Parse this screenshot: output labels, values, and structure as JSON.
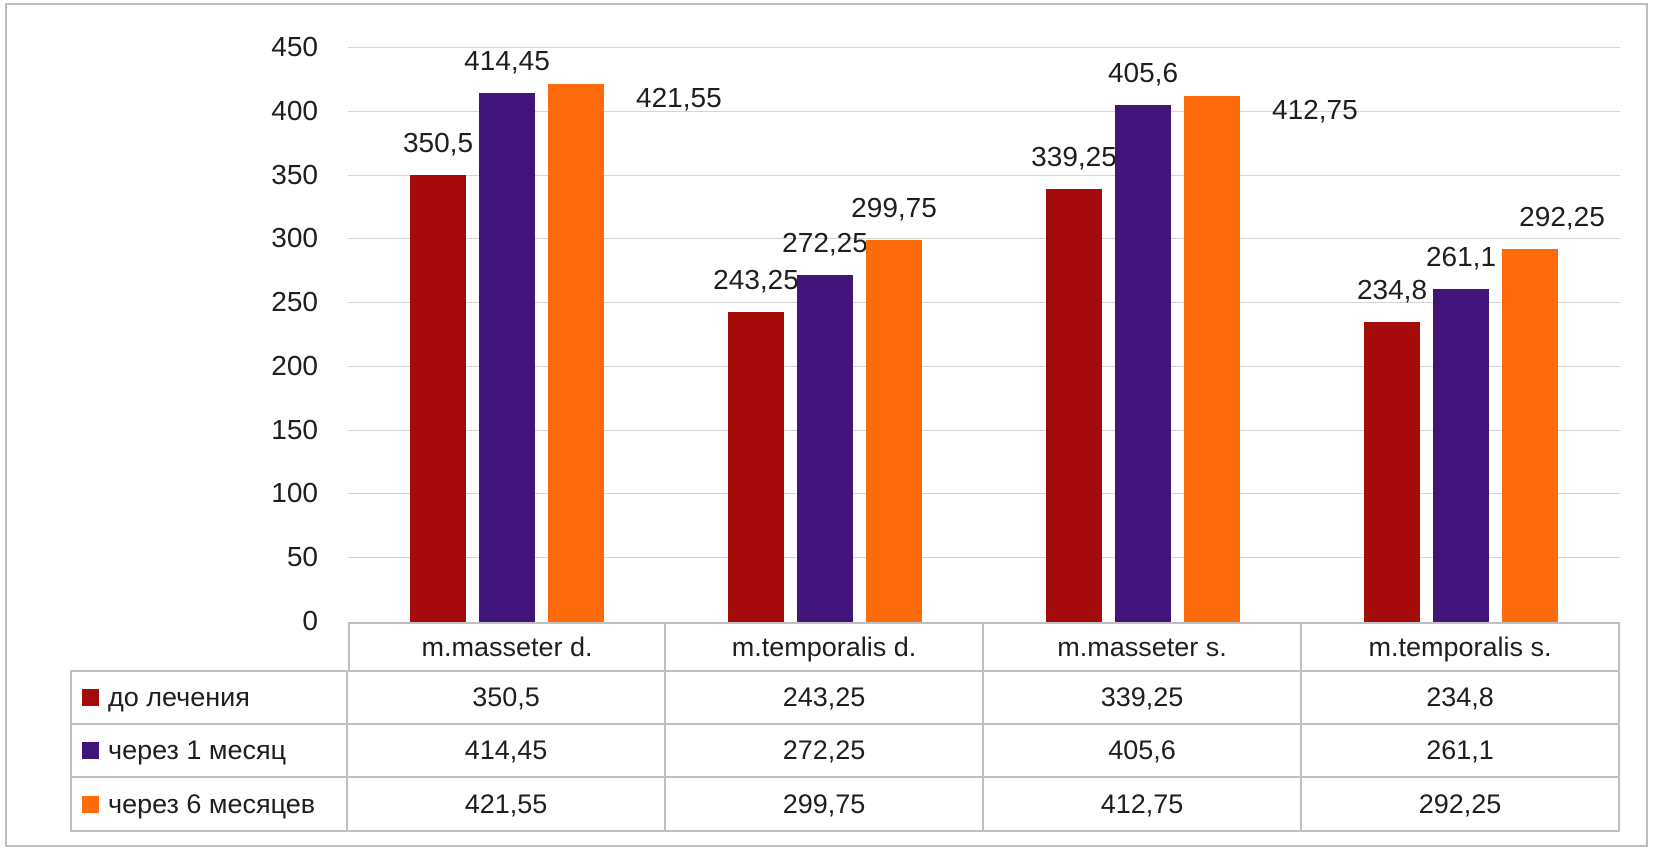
{
  "chart_data": {
    "type": "bar",
    "title": "",
    "xlabel": "",
    "ylabel": "",
    "categories": [
      "m.masseter d.",
      "m.temporalis d.",
      "m.masseter s.",
      "m.temporalis s."
    ],
    "series": [
      {
        "name": "до лечения",
        "color": "#a40b0a",
        "values": [
          350.5,
          243.25,
          339.25,
          234.8
        ],
        "labels": [
          "350,5",
          "243,25",
          "339,25",
          "234,8"
        ]
      },
      {
        "name": "через 1 месяц",
        "color": "#401478",
        "values": [
          414.45,
          272.25,
          405.6,
          261.1
        ],
        "labels": [
          "414,45",
          "272,25",
          "405,6",
          "261,1"
        ]
      },
      {
        "name": "через 6 месяцев",
        "color": "#fd6b0d",
        "values": [
          421.55,
          299.75,
          412.75,
          292.25
        ],
        "labels": [
          "421,55",
          "299,75",
          "412,75",
          "292,25"
        ]
      }
    ],
    "ylim": [
      0,
      450
    ],
    "ytick_step": 50,
    "yticks": [
      "450",
      "400",
      "350",
      "300",
      "250",
      "200",
      "150",
      "100",
      "50",
      "0"
    ],
    "grid": true,
    "legend_position": "data-table-left-column",
    "data_label_placement": {
      "default": "above-center",
      "overrides": [
        {
          "series": 2,
          "category": 0,
          "placement": "right-of-bar"
        },
        {
          "series": 2,
          "category": 2,
          "placement": "right-of-bar"
        },
        {
          "series": 2,
          "category": 3,
          "placement": "above-right"
        }
      ]
    }
  }
}
